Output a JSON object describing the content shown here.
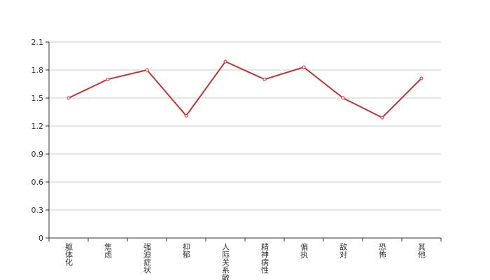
{
  "chart_data": {
    "type": "line",
    "categories": [
      "躯体化",
      "焦虑",
      "强迫症状",
      "抑郁",
      "人际关系敏感",
      "精神病性",
      "偏执",
      "敌对",
      "恐怖",
      "其他"
    ],
    "series": [
      {
        "color": "#c23531",
        "values": [
          1.5,
          1.7,
          1.8,
          1.31,
          1.89,
          1.7,
          1.83,
          1.5,
          1.29,
          1.71
        ]
      }
    ],
    "ylim": [
      0,
      2.1
    ],
    "yticks": [
      0,
      0.3,
      0.6,
      0.9,
      1.2,
      1.5,
      1.8,
      2.1
    ],
    "grid": true
  }
}
